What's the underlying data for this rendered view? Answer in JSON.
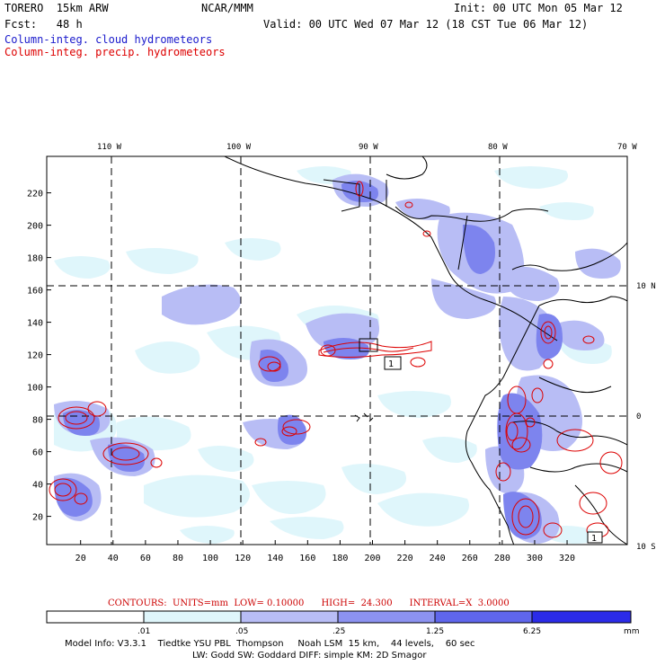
{
  "header": {
    "model": "TORERO  15km ARW",
    "org": "NCAR/MMM",
    "init": "Init: 00 UTC Mon 05 Mar 12",
    "fcst": "Fcst:   48 h",
    "valid": "Valid: 00 UTC Wed 07 Mar 12 (18 CST Tue 06 Mar 12)",
    "legend_cloud": "Column-integ. cloud hydrometeors",
    "legend_precip": "Column-integ. precip. hydrometeors"
  },
  "colors": {
    "cloud": "#1a1acc",
    "precip": "#dd0000",
    "shade1": "#dff6fb",
    "shade2": "#b8bdf5",
    "shade3": "#8c92f0",
    "shade4": "#5f66ec",
    "shade5": "#2b2be8"
  },
  "map": {
    "x_ticks": [
      "20",
      "40",
      "60",
      "80",
      "100",
      "120",
      "140",
      "160",
      "180",
      "200",
      "220",
      "240",
      "260",
      "280",
      "300",
      "320"
    ],
    "y_ticks": [
      "20",
      "40",
      "60",
      "80",
      "100",
      "120",
      "140",
      "160",
      "180",
      "200",
      "220"
    ],
    "lon_labels": [
      "110 W",
      "100 W",
      "90 W",
      "80 W",
      "70 W"
    ],
    "lat_labels": [
      "10 N",
      "0",
      "10 S"
    ],
    "box_labels": [
      "1",
      "1"
    ]
  },
  "footer": {
    "contours": "CONTOURS:  UNITS=mm  LOW= 0.10000      HIGH=  24.300      INTERVAL=X  3.0000",
    "colorbar_values": [
      ".01",
      ".05",
      ".25",
      "1.25",
      "6.25"
    ],
    "colorbar_unit": "mm",
    "model_info_1": "Model Info: V3.3.1    Tiedtke YSU PBL  Thompson     Noah LSM  15 km,    44 levels,    60 sec",
    "model_info_2": "LW: Godd SW: Goddard DIFF: simple KM: 2D Smagor"
  }
}
